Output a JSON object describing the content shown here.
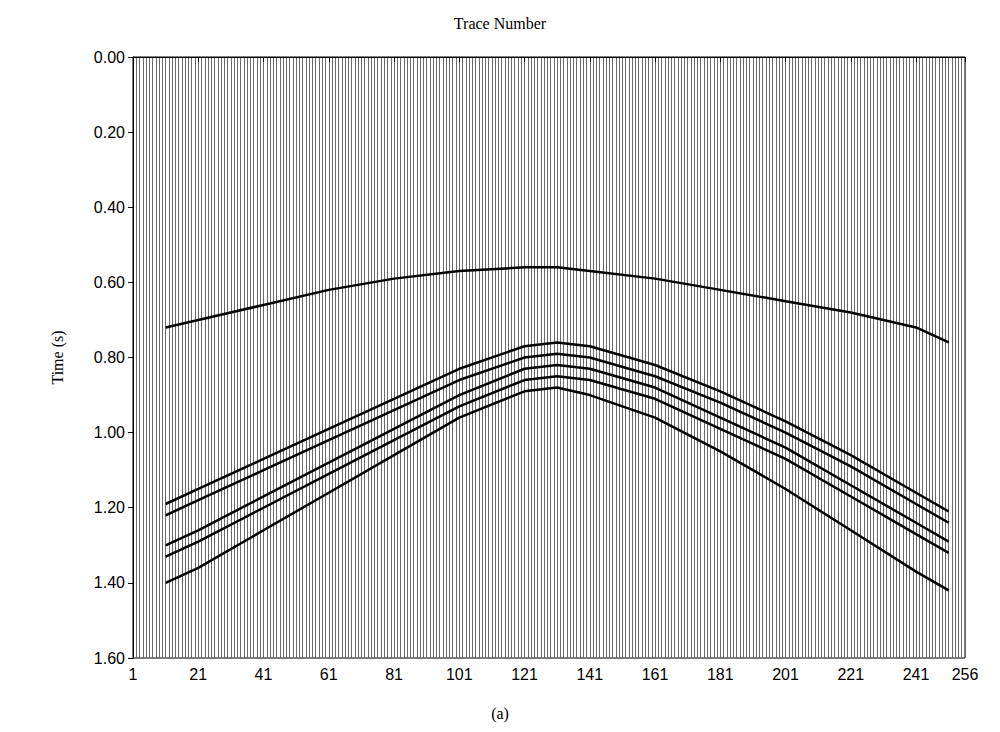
{
  "chart_data": {
    "type": "line",
    "xlabel": "Trace Number",
    "ylabel": "Time (s)",
    "caption": "(a)",
    "x": [
      11,
      21,
      41,
      61,
      81,
      101,
      121,
      131,
      141,
      161,
      181,
      201,
      221,
      241,
      251
    ],
    "series": [
      {
        "color": "#000000",
        "values": [
          0.72,
          0.7,
          0.66,
          0.62,
          0.59,
          0.57,
          0.56,
          0.56,
          0.57,
          0.59,
          0.62,
          0.65,
          0.68,
          0.72,
          0.76
        ]
      },
      {
        "color": "#000000",
        "values": [
          1.19,
          1.15,
          1.07,
          0.99,
          0.91,
          0.83,
          0.77,
          0.76,
          0.77,
          0.82,
          0.89,
          0.97,
          1.06,
          1.16,
          1.21
        ]
      },
      {
        "color": "#000000",
        "values": [
          1.22,
          1.18,
          1.1,
          1.02,
          0.94,
          0.86,
          0.8,
          0.79,
          0.8,
          0.85,
          0.92,
          1.0,
          1.09,
          1.19,
          1.24
        ]
      },
      {
        "color": "#000000",
        "values": [
          1.3,
          1.26,
          1.17,
          1.08,
          0.99,
          0.9,
          0.83,
          0.82,
          0.83,
          0.88,
          0.96,
          1.04,
          1.14,
          1.24,
          1.29
        ]
      },
      {
        "color": "#000000",
        "values": [
          1.33,
          1.29,
          1.2,
          1.11,
          1.02,
          0.93,
          0.86,
          0.85,
          0.86,
          0.91,
          0.99,
          1.07,
          1.17,
          1.27,
          1.32
        ]
      },
      {
        "color": "#000000",
        "values": [
          1.4,
          1.36,
          1.26,
          1.16,
          1.06,
          0.96,
          0.89,
          0.88,
          0.9,
          0.96,
          1.05,
          1.15,
          1.26,
          1.37,
          1.42
        ]
      }
    ],
    "xlim": [
      1,
      256
    ],
    "xticks": [
      1,
      21,
      41,
      61,
      81,
      101,
      121,
      141,
      161,
      181,
      201,
      221,
      241,
      256
    ],
    "ylim": [
      0,
      1.6
    ],
    "yticks": [
      {
        "value": 0,
        "label": "0.00"
      },
      {
        "value": 0.2,
        "label": "0.20"
      },
      {
        "value": 0.4,
        "label": "0.40"
      },
      {
        "value": 0.6,
        "label": "0.60"
      },
      {
        "value": 0.8,
        "label": "0.80"
      },
      {
        "value": 1.0,
        "label": "1.00"
      },
      {
        "value": 1.2,
        "label": "1.20"
      },
      {
        "value": 1.4,
        "label": "1.40"
      },
      {
        "value": 1.6,
        "label": "1.60"
      }
    ],
    "grid": false
  }
}
